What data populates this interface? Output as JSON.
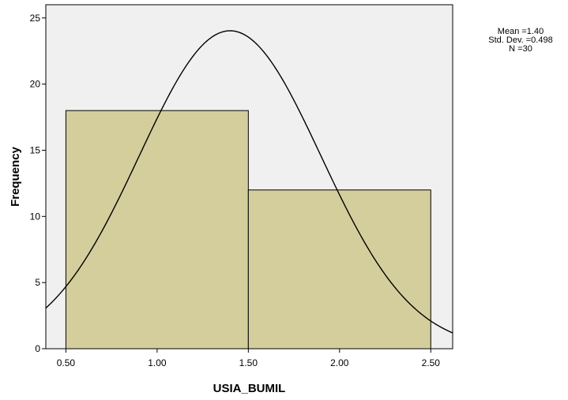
{
  "chart_data": {
    "type": "bar",
    "title": "",
    "xlabel": "USIA_BUMIL",
    "ylabel": "Frequency",
    "bins": [
      {
        "from": 0.5,
        "to": 1.5,
        "value": 18
      },
      {
        "from": 1.5,
        "to": 2.5,
        "value": 12
      }
    ],
    "xlim": [
      0.39,
      2.62
    ],
    "ylim": [
      0,
      26
    ],
    "x_ticks": [
      "0.50",
      "1.00",
      "1.50",
      "2.00",
      "2.50"
    ],
    "y_ticks": [
      "0",
      "5",
      "10",
      "15",
      "20",
      "25"
    ],
    "normal_curve": {
      "mean": 1.4,
      "std": 0.498,
      "n": 30,
      "bin_width": 1.0
    },
    "grid": false,
    "colors": {
      "plot_background": "#f0f0f0",
      "bar_fill": "#d3ce9b",
      "stroke": "#000000"
    }
  },
  "stats": {
    "mean": "Mean =1.40",
    "std_dev": "Std. Dev. =0.498",
    "n": "N =30"
  }
}
